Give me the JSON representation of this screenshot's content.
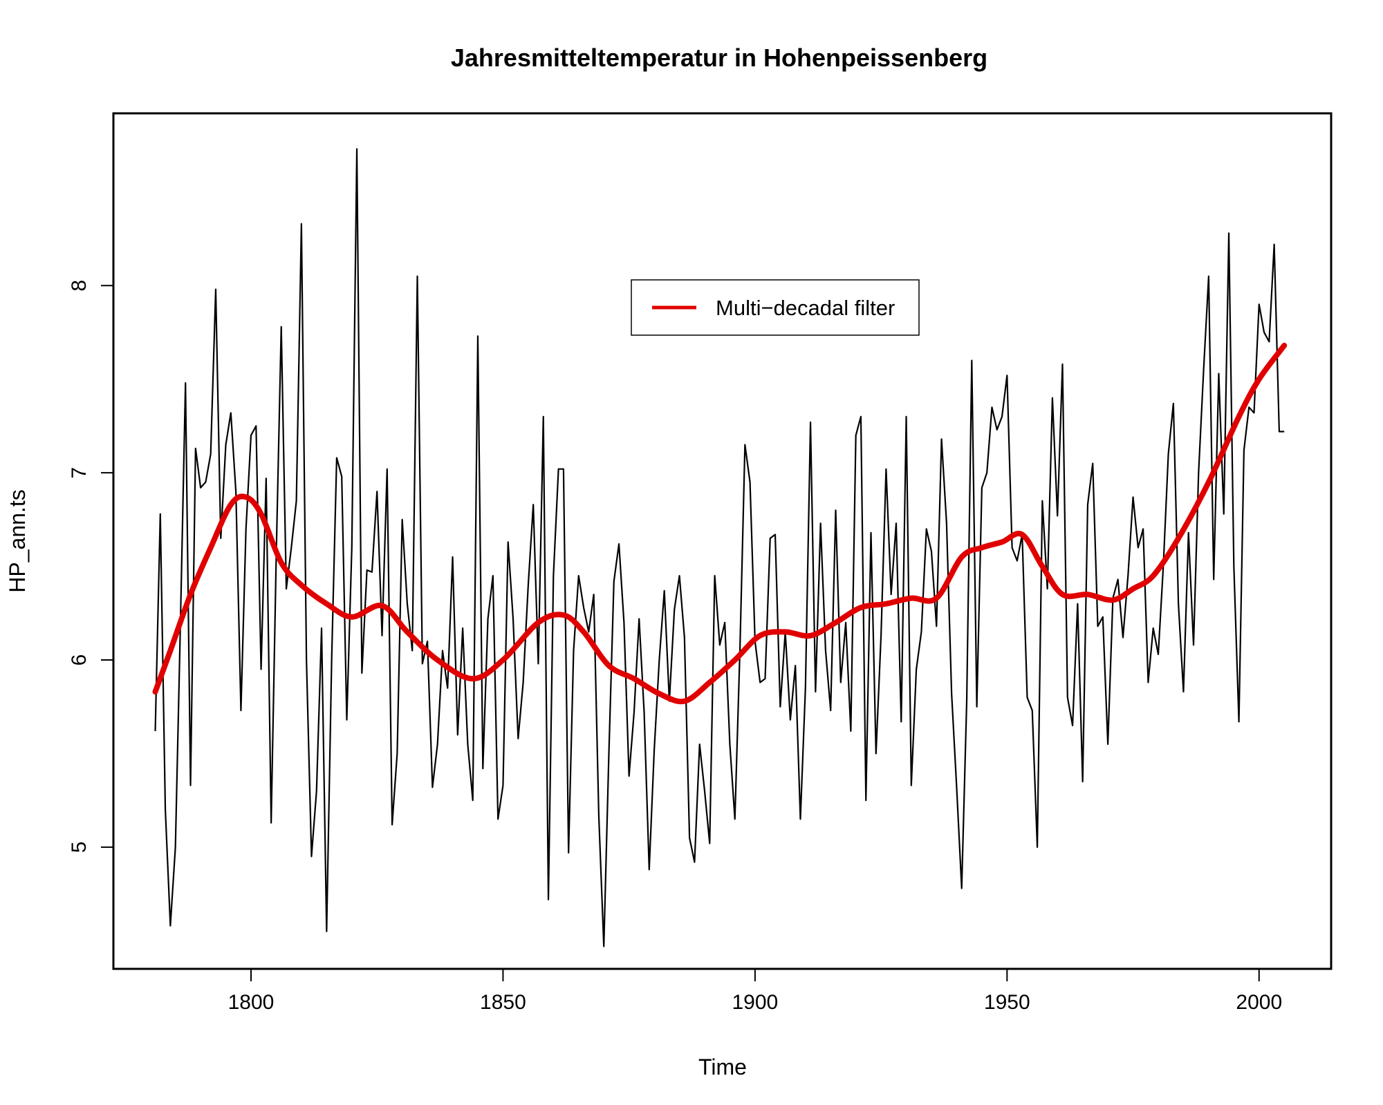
{
  "chart_data": {
    "type": "line",
    "title": "Jahresmitteltemperatur in Hohenpeissenberg",
    "xlabel": "Time",
    "ylabel": "HP_ann.ts",
    "xlim": [
      1772.7,
      2014.3
    ],
    "ylim": [
      4.35,
      8.92
    ],
    "x_ticks": [
      1800,
      1850,
      1900,
      1950,
      2000
    ],
    "y_ticks": [
      5,
      6,
      7,
      8
    ],
    "x_tick_labels": [
      "1800",
      "1850",
      "1900",
      "1950",
      "2000"
    ],
    "y_tick_labels": [
      "5",
      "6",
      "7",
      "8"
    ],
    "legend": {
      "position": "top-center",
      "entries": [
        "Multi−decadal filter"
      ]
    },
    "colors": {
      "raw": "#000000",
      "filter": "#e00000"
    },
    "series": [
      {
        "name": "",
        "color": "#000000",
        "x_start": 1781,
        "x_step": 1,
        "values": [
          5.62,
          6.78,
          5.2,
          4.58,
          5.0,
          6.2,
          7.48,
          5.33,
          7.13,
          6.92,
          6.95,
          7.1,
          7.98,
          6.65,
          7.15,
          7.32,
          6.9,
          5.73,
          6.7,
          7.2,
          7.25,
          5.95,
          6.97,
          5.13,
          6.55,
          7.78,
          6.38,
          6.6,
          6.85,
          8.33,
          6.0,
          4.95,
          5.3,
          6.17,
          4.55,
          6.0,
          7.08,
          6.98,
          5.68,
          6.6,
          8.73,
          5.93,
          6.48,
          6.47,
          6.9,
          6.13,
          7.02,
          5.12,
          5.5,
          6.75,
          6.3,
          6.05,
          8.05,
          5.98,
          6.1,
          5.32,
          5.55,
          6.05,
          5.85,
          6.55,
          5.6,
          6.17,
          5.55,
          5.25,
          7.73,
          5.42,
          6.22,
          6.45,
          5.15,
          5.33,
          6.63,
          6.22,
          5.58,
          5.88,
          6.4,
          6.83,
          5.98,
          7.3,
          4.72,
          6.45,
          7.02,
          7.02,
          4.97,
          6.05,
          6.45,
          6.28,
          6.15,
          6.35,
          5.17,
          4.47,
          5.5,
          6.42,
          6.62,
          6.2,
          5.38,
          5.72,
          6.22,
          5.72,
          4.88,
          5.52,
          6.0,
          6.37,
          5.78,
          6.27,
          6.45,
          6.12,
          5.05,
          4.92,
          5.55,
          5.3,
          5.02,
          6.45,
          6.08,
          6.2,
          5.55,
          5.15,
          6.05,
          7.15,
          6.95,
          6.1,
          5.88,
          5.9,
          6.65,
          6.67,
          5.75,
          6.15,
          5.68,
          5.97,
          5.15,
          5.85,
          7.27,
          5.83,
          6.73,
          6.05,
          5.73,
          6.8,
          5.88,
          6.2,
          5.62,
          7.2,
          7.3,
          5.25,
          6.68,
          5.5,
          6.13,
          7.02,
          6.35,
          6.73,
          5.67,
          7.3,
          5.33,
          5.95,
          6.15,
          6.7,
          6.58,
          6.18,
          7.18,
          6.73,
          5.82,
          5.32,
          4.78,
          5.78,
          7.6,
          5.75,
          6.92,
          7.0,
          7.35,
          7.23,
          7.3,
          7.52,
          6.6,
          6.53,
          6.67,
          5.8,
          5.73,
          5.0,
          6.85,
          6.38,
          7.4,
          6.77,
          7.58,
          5.8,
          5.65,
          6.3,
          5.35,
          6.83,
          7.05,
          6.18,
          6.23,
          5.55,
          6.33,
          6.43,
          6.12,
          6.45,
          6.87,
          6.6,
          6.7,
          5.88,
          6.17,
          6.03,
          6.5,
          7.1,
          7.37,
          6.3,
          5.83,
          6.68,
          6.08,
          7.0,
          7.55,
          8.05,
          6.43,
          7.53,
          6.78,
          8.28,
          6.5,
          5.67,
          7.12,
          7.35,
          7.32,
          7.9,
          7.75,
          7.7,
          8.22,
          7.22,
          7.22
        ]
      },
      {
        "name": "Multi−decadal filter",
        "color": "#e00000",
        "points": [
          [
            1781,
            5.83
          ],
          [
            1784,
            6.05
          ],
          [
            1788,
            6.35
          ],
          [
            1792,
            6.6
          ],
          [
            1796,
            6.83
          ],
          [
            1799,
            6.87
          ],
          [
            1802,
            6.78
          ],
          [
            1806,
            6.52
          ],
          [
            1810,
            6.4
          ],
          [
            1815,
            6.3
          ],
          [
            1820,
            6.23
          ],
          [
            1826,
            6.29
          ],
          [
            1831,
            6.15
          ],
          [
            1837,
            6.0
          ],
          [
            1844,
            5.9
          ],
          [
            1850,
            6.0
          ],
          [
            1857,
            6.2
          ],
          [
            1862,
            6.24
          ],
          [
            1866,
            6.15
          ],
          [
            1871,
            5.97
          ],
          [
            1876,
            5.9
          ],
          [
            1881,
            5.82
          ],
          [
            1886,
            5.78
          ],
          [
            1891,
            5.88
          ],
          [
            1896,
            6.0
          ],
          [
            1901,
            6.13
          ],
          [
            1906,
            6.15
          ],
          [
            1911,
            6.13
          ],
          [
            1916,
            6.2
          ],
          [
            1921,
            6.28
          ],
          [
            1926,
            6.3
          ],
          [
            1931,
            6.33
          ],
          [
            1936,
            6.33
          ],
          [
            1941,
            6.55
          ],
          [
            1945,
            6.6
          ],
          [
            1949,
            6.63
          ],
          [
            1953,
            6.67
          ],
          [
            1957,
            6.5
          ],
          [
            1961,
            6.35
          ],
          [
            1966,
            6.35
          ],
          [
            1971,
            6.32
          ],
          [
            1975,
            6.38
          ],
          [
            1979,
            6.45
          ],
          [
            1984,
            6.65
          ],
          [
            1990,
            6.95
          ],
          [
            1996,
            7.3
          ],
          [
            2000,
            7.5
          ],
          [
            2005,
            7.68
          ]
        ]
      }
    ]
  }
}
